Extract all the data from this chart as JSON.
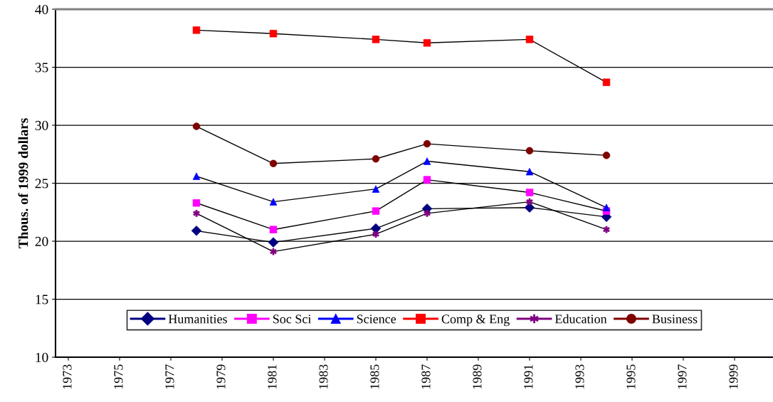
{
  "chart_data": {
    "type": "line",
    "ylabel": "Thous. of 1999 dollars",
    "x": [
      1978,
      1981,
      1985,
      1987,
      1991,
      1994
    ],
    "xlim": [
      1972.5,
      2000.5
    ],
    "xticks": [
      1973,
      1975,
      1977,
      1979,
      1981,
      1983,
      1985,
      1987,
      1989,
      1991,
      1993,
      1995,
      1997,
      1999
    ],
    "ylim": [
      10,
      40
    ],
    "yticks": [
      10,
      15,
      20,
      25,
      30,
      35,
      40
    ],
    "grid": "y",
    "legend": "bottom",
    "series": [
      {
        "name": "Humanities",
        "color": "#000080",
        "marker": "diamond",
        "values": [
          20.9,
          19.9,
          21.1,
          22.8,
          22.9,
          22.1
        ]
      },
      {
        "name": "Soc Sci",
        "color": "#ff00ff",
        "marker": "square",
        "values": [
          23.3,
          21.0,
          22.6,
          25.3,
          24.2,
          22.6
        ]
      },
      {
        "name": "Science",
        "color": "#0000ff",
        "marker": "triangle",
        "values": [
          25.6,
          23.4,
          24.5,
          26.9,
          26.0,
          22.9
        ]
      },
      {
        "name": "Comp & Eng",
        "color": "#ff0000",
        "marker": "square",
        "values": [
          38.2,
          37.9,
          37.4,
          37.1,
          37.4,
          33.7
        ]
      },
      {
        "name": "Education",
        "color": "#800080",
        "marker": "cross",
        "values": [
          22.4,
          19.1,
          20.6,
          22.4,
          23.4,
          21.0
        ]
      },
      {
        "name": "Business",
        "color": "#800000",
        "marker": "circle",
        "values": [
          29.9,
          26.7,
          27.1,
          28.4,
          27.8,
          27.4
        ]
      }
    ]
  }
}
